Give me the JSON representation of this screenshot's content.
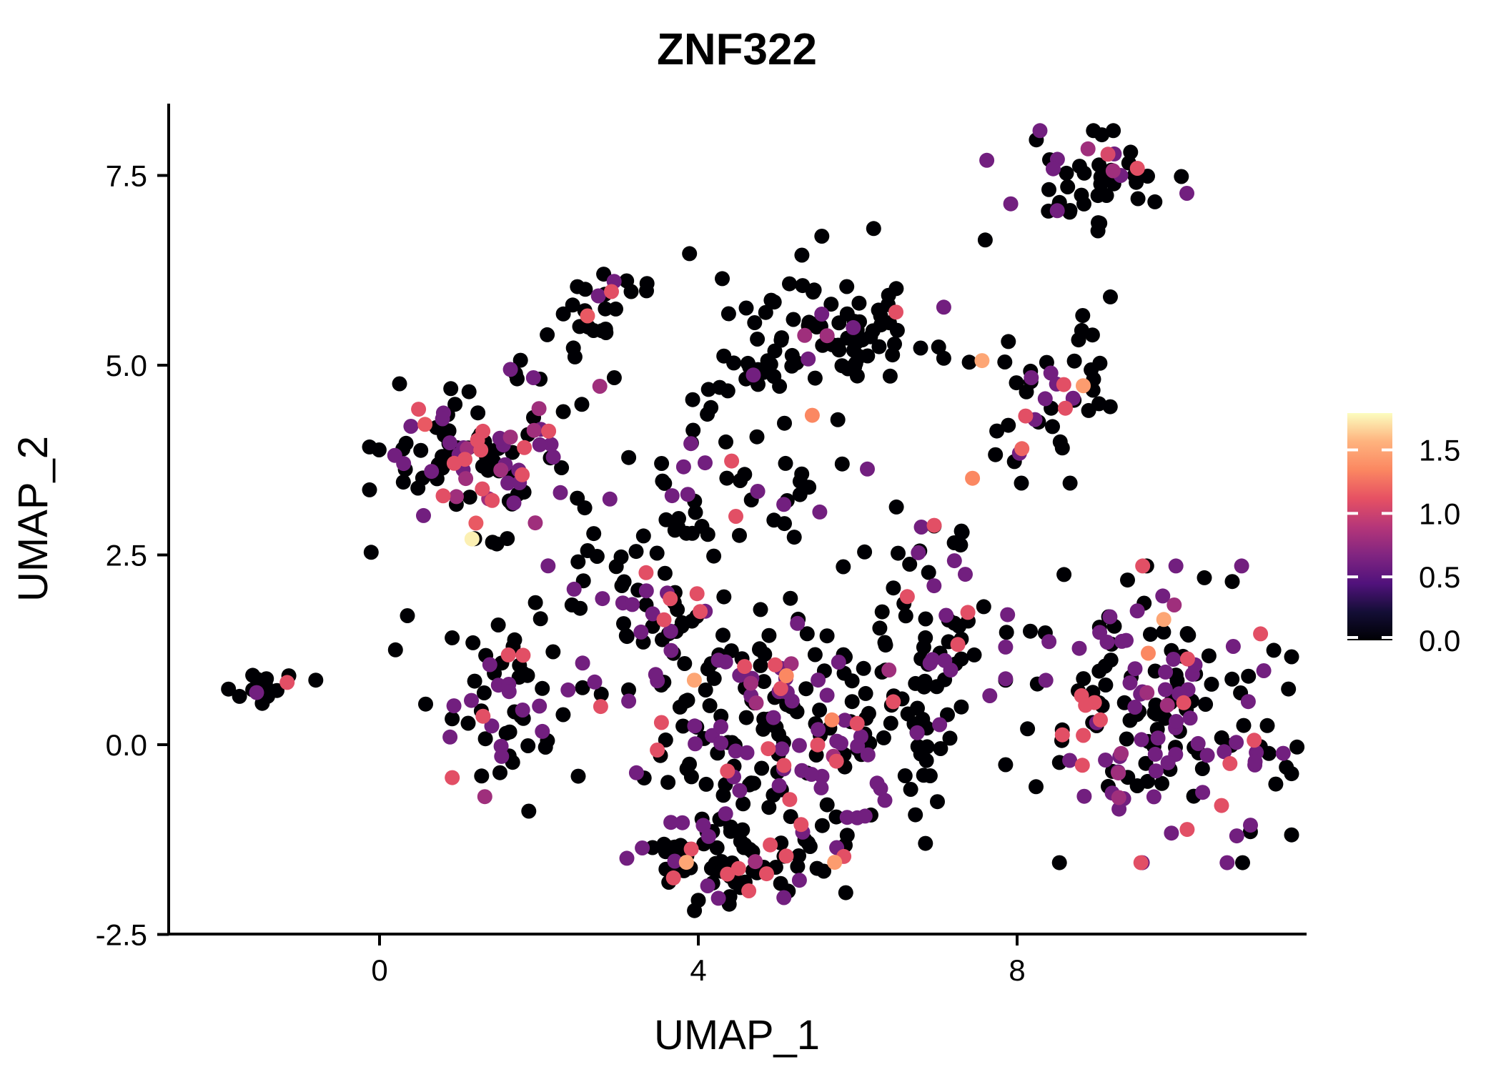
{
  "chart_data": {
    "type": "scatter",
    "title": "ZNF322",
    "xlabel": "UMAP_1",
    "ylabel": "UMAP_2",
    "xlim": [
      -2.6,
      11.6
    ],
    "ylim": [
      -2.5,
      8.4
    ],
    "grid": false,
    "x_ticks": [
      0,
      4,
      8
    ],
    "x_tick_labels": [
      "0",
      "4",
      "8"
    ],
    "y_ticks": [
      -2.5,
      0,
      2.5,
      5,
      7.5
    ],
    "y_tick_labels": [
      "-2.5",
      "0.0",
      "2.5",
      "5.0",
      "7.5"
    ],
    "point_radius_px": 10.5,
    "color_scale": {
      "name": "magma",
      "vmin": 0,
      "vmax": 1.79,
      "stops": [
        [
          0,
          "#000004"
        ],
        [
          0.125,
          "#140e36"
        ],
        [
          0.25,
          "#51127c"
        ],
        [
          0.375,
          "#812581"
        ],
        [
          0.5,
          "#b63679"
        ],
        [
          0.625,
          "#e65163"
        ],
        [
          0.75,
          "#fb8761"
        ],
        [
          0.875,
          "#feb37e"
        ],
        [
          1,
          "#fcfdbf"
        ]
      ]
    },
    "colorbar": {
      "position": "right",
      "tick_values": [
        1.5,
        1.0,
        0.5,
        0.0
      ],
      "tick_labels": [
        "1.5",
        "1.0",
        "0.5",
        "0.0"
      ]
    },
    "clusters": [
      {
        "name": "far-left",
        "cx": -1.5,
        "cy": 0.75,
        "sx": 0.2,
        "sy": 0.12,
        "n": 13,
        "mix": [
          [
            0,
            11
          ],
          [
            0.6,
            2
          ]
        ]
      },
      {
        "name": "upper-small",
        "cx": 2.75,
        "cy": 5.55,
        "sx": 0.32,
        "sy": 0.36,
        "n": 26,
        "mix": [
          [
            0,
            22
          ],
          [
            0.6,
            3
          ],
          [
            0.8,
            1
          ]
        ]
      },
      {
        "name": "top-middle",
        "cx": 5.7,
        "cy": 5.35,
        "sx": 0.6,
        "sy": 0.42,
        "n": 80,
        "mix": [
          [
            0,
            74
          ],
          [
            0.6,
            5
          ],
          [
            0.8,
            1
          ]
        ]
      },
      {
        "name": "mid-right",
        "cx": 8.5,
        "cy": 4.55,
        "sx": 0.45,
        "sy": 0.48,
        "n": 40,
        "mix": [
          [
            0,
            31
          ],
          [
            0.6,
            7
          ],
          [
            0.8,
            1
          ],
          [
            1.1,
            1
          ]
        ]
      },
      {
        "name": "top-right",
        "cx": 9.0,
        "cy": 7.4,
        "sx": 0.6,
        "sy": 0.3,
        "n": 50,
        "mix": [
          [
            0,
            38
          ],
          [
            0.6,
            8
          ],
          [
            0.8,
            3
          ],
          [
            1.1,
            1
          ]
        ]
      },
      {
        "name": "left-big",
        "cx": 1.3,
        "cy": 3.8,
        "sx": 0.62,
        "sy": 0.55,
        "n": 105,
        "mix": [
          [
            0,
            69
          ],
          [
            0.6,
            24
          ],
          [
            0.8,
            5
          ],
          [
            1.1,
            7
          ]
        ]
      },
      {
        "name": "middle-band",
        "cx": 4.3,
        "cy": 3.3,
        "sx": 0.95,
        "sy": 0.55,
        "n": 52,
        "mix": [
          [
            0,
            40
          ],
          [
            0.6,
            9
          ],
          [
            1.1,
            3
          ]
        ]
      },
      {
        "name": "central-upper",
        "cx": 3.4,
        "cy": 1.75,
        "sx": 0.6,
        "sy": 0.45,
        "n": 62,
        "mix": [
          [
            0,
            45
          ],
          [
            0.6,
            13
          ],
          [
            1.1,
            4
          ]
        ]
      },
      {
        "name": "central-left",
        "cx": 1.5,
        "cy": 0.55,
        "sx": 0.45,
        "sy": 0.62,
        "n": 55,
        "mix": [
          [
            0,
            38
          ],
          [
            0.6,
            13
          ],
          [
            0.8,
            2
          ],
          [
            1.1,
            2
          ]
        ]
      },
      {
        "name": "central-main",
        "cx": 5.0,
        "cy": 0.3,
        "sx": 1.0,
        "sy": 0.72,
        "n": 190,
        "mix": [
          [
            0,
            115
          ],
          [
            0.6,
            52
          ],
          [
            0.8,
            8
          ],
          [
            1.1,
            13
          ],
          [
            1.35,
            2
          ]
        ]
      },
      {
        "name": "central-lower",
        "cx": 4.4,
        "cy": -1.45,
        "sx": 0.62,
        "sy": 0.32,
        "n": 80,
        "mix": [
          [
            0,
            57
          ],
          [
            0.6,
            17
          ],
          [
            0.8,
            1
          ],
          [
            1.1,
            5
          ]
        ]
      },
      {
        "name": "central-right",
        "cx": 6.85,
        "cy": 1.2,
        "sx": 0.4,
        "sy": 0.7,
        "n": 45,
        "mix": [
          [
            0,
            34
          ],
          [
            0.6,
            8
          ],
          [
            1.1,
            3
          ]
        ]
      },
      {
        "name": "central-peak",
        "cx": 7.0,
        "cy": 2.4,
        "sx": 0.28,
        "sy": 0.4,
        "n": 18,
        "mix": [
          [
            0,
            14
          ],
          [
            0.6,
            4
          ]
        ]
      },
      {
        "name": "right-big",
        "cx": 9.65,
        "cy": 0.4,
        "sx": 0.78,
        "sy": 0.85,
        "n": 165,
        "mix": [
          [
            0,
            90
          ],
          [
            0.6,
            53
          ],
          [
            0.8,
            9
          ],
          [
            1.1,
            12
          ],
          [
            1.35,
            1
          ]
        ]
      },
      {
        "name": "right-edge",
        "cx": 11.0,
        "cy": -0.1,
        "sx": 0.26,
        "sy": 0.5,
        "n": 16,
        "mix": [
          [
            0,
            11
          ],
          [
            0.6,
            4
          ],
          [
            1.1,
            1
          ]
        ]
      },
      {
        "name": "sparse-top",
        "cx": 4.4,
        "cy": 4.9,
        "sx": 0.4,
        "sy": 0.3,
        "n": 10,
        "mix": [
          [
            0,
            9
          ],
          [
            0.6,
            1
          ]
        ]
      }
    ],
    "singles": [
      [
        -0.8,
        0.85
      ],
      [
        7.6,
        6.65
      ],
      [
        9.17,
        5.9
      ],
      [
        6.2,
        6.8
      ],
      [
        7.4,
        5.04
      ],
      [
        0.2,
        1.25
      ],
      [
        10.7,
        2.15
      ],
      [
        10.35,
        2.2
      ],
      [
        7.0,
        -0.75
      ],
      [
        6.85,
        -1.3
      ],
      [
        5.85,
        -1.95
      ],
      [
        4.0,
        -2.05
      ],
      [
        3.89,
        6.47
      ],
      [
        4.3,
        6.14
      ],
      [
        3.35,
        5.98
      ],
      [
        5.3,
        6.45
      ],
      [
        5.55,
        6.7
      ],
      [
        0.35,
        1.7
      ]
    ],
    "highlight_points": [
      [
        1.16,
        2.71,
        1.75
      ],
      [
        1.21,
        2.92,
        1.15
      ],
      [
        7.56,
        5.06,
        1.5
      ],
      [
        8.83,
        4.73,
        1.45
      ],
      [
        9.84,
        1.65,
        1.5
      ],
      [
        3.95,
        0.85,
        1.5
      ],
      [
        3.85,
        -1.55,
        1.5
      ],
      [
        5.71,
        -1.55,
        1.45
      ],
      [
        5.43,
        4.34,
        1.35
      ],
      [
        6.48,
        5.7,
        1.1
      ],
      [
        7.44,
        3.51,
        1.35
      ],
      [
        -1.16,
        0.82,
        1.1
      ],
      [
        2.91,
        5.97,
        1.1
      ],
      [
        2.61,
        5.65,
        1.15
      ],
      [
        0.49,
        4.42,
        1.1
      ],
      [
        0.57,
        4.22,
        1.15
      ],
      [
        1.29,
        3.37,
        1.1
      ],
      [
        1.23,
        4.01,
        1.1
      ],
      [
        4.58,
        1.03,
        1.1
      ],
      [
        8.06,
        3.9,
        1.2
      ],
      [
        8.03,
        3.84,
        0.6
      ],
      [
        9.14,
        7.78,
        1.05
      ],
      [
        6.96,
        2.89,
        1.1
      ],
      [
        9.3,
        7.5,
        0.6
      ],
      [
        8.89,
        7.85,
        0.8
      ]
    ]
  }
}
